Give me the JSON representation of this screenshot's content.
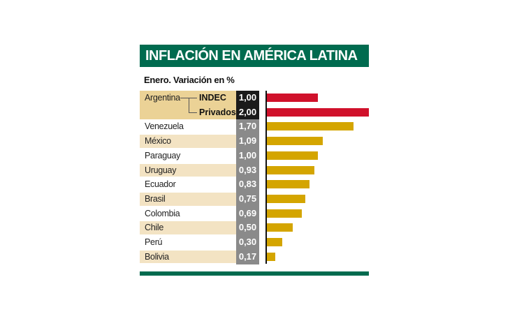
{
  "chart_data": {
    "type": "bar",
    "title": "INFLACIÓN EN AMÉRICA LATINA",
    "subtitle": "Enero. Variación en %",
    "xlim": [
      0,
      2
    ],
    "colors": {
      "argentina": "#d0112b",
      "others": "#d4a500",
      "header": "#006b4f",
      "value_box_argentina": "#1a1a1a",
      "value_box_others": "#8a8a8a",
      "row_shade": "#f3e3c3",
      "argentina_shade": "#ebd296"
    },
    "argentina": {
      "label": "Argentina",
      "series": [
        {
          "name": "INDEC",
          "value": 1.0,
          "display": "1,00"
        },
        {
          "name": "Privados",
          "value": 2.0,
          "display": "2,00"
        }
      ]
    },
    "categories": [
      "Venezuela",
      "México",
      "Paraguay",
      "Uruguay",
      "Ecuador",
      "Brasil",
      "Colombia",
      "Chile",
      "Perú",
      "Bolivia"
    ],
    "values": [
      1.7,
      1.09,
      1.0,
      0.93,
      0.83,
      0.75,
      0.69,
      0.5,
      0.3,
      0.17
    ],
    "display": [
      "1,70",
      "1,09",
      "1,00",
      "0,93",
      "0,83",
      "0,75",
      "0,69",
      "0,50",
      "0,30",
      "0,17"
    ]
  }
}
